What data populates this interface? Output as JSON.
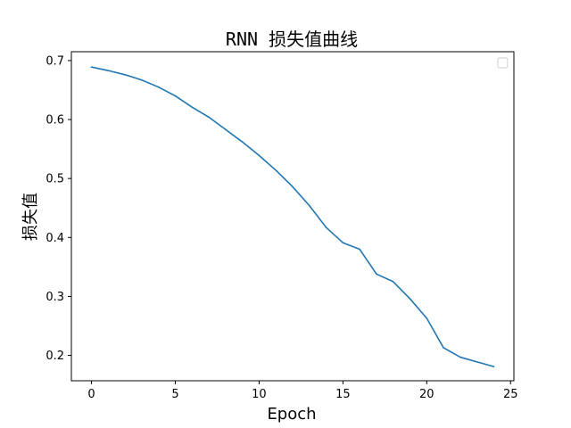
{
  "chart_data": {
    "type": "line",
    "title": "RNN 损失值曲线",
    "xlabel": "Epoch",
    "ylabel": "损失值",
    "xlim": [
      -1.2,
      25.2
    ],
    "ylim": [
      0.157,
      0.715
    ],
    "xticks": [
      0,
      5,
      10,
      15,
      20,
      25
    ],
    "yticks": [
      0.2,
      0.3,
      0.4,
      0.5,
      0.6,
      0.7
    ],
    "xtick_labels": [
      "0",
      "5",
      "10",
      "15",
      "20",
      "25"
    ],
    "ytick_labels": [
      "0.2",
      "0.3",
      "0.4",
      "0.5",
      "0.6",
      "0.7"
    ],
    "grid": false,
    "legend": {
      "position": "top-right",
      "entries": []
    },
    "colors": {
      "series": "#1f77b4"
    },
    "series": [
      {
        "x": [
          0,
          1,
          2,
          3,
          4,
          5,
          6,
          7,
          8,
          9,
          10,
          11,
          12,
          13,
          14,
          15,
          16,
          17,
          18,
          19,
          20,
          21,
          22,
          23,
          24
        ],
        "values": [
          0.689,
          0.683,
          0.676,
          0.667,
          0.655,
          0.64,
          0.621,
          0.604,
          0.583,
          0.562,
          0.539,
          0.514,
          0.486,
          0.454,
          0.417,
          0.391,
          0.38,
          0.338,
          0.325,
          0.296,
          0.263,
          0.213,
          0.197,
          0.189,
          0.181
        ]
      }
    ]
  }
}
